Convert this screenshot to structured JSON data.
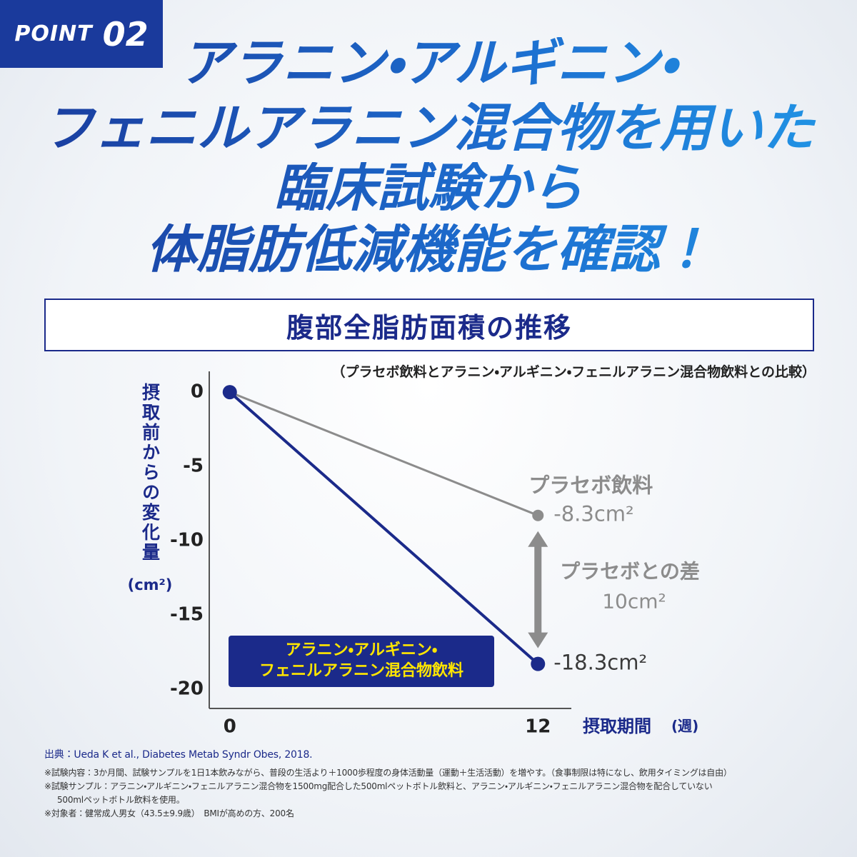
{
  "badge": {
    "word": "POINT",
    "number": "02"
  },
  "headline": [
    "アラニン・アルギニン・",
    "フェニルアラニン混合物を用いた",
    "臨床試験から",
    "体脂肪低減機能を確認！"
  ],
  "chart_data": {
    "type": "line",
    "title": "腹部全脂肪面積の推移",
    "subtitle": "（プラセボ飲料とアラニン・アルギニン・フェニルアラニン混合物飲料との比較）",
    "y_label": "摂取前からの変化量",
    "y_unit": "(cm²)",
    "x_label": "摂取期間",
    "x_unit": "(週)",
    "x": [
      0,
      12
    ],
    "xlim": [
      -0.8,
      13.3
    ],
    "xticks": [
      0,
      12
    ],
    "ylim": [
      -21.3,
      1.4
    ],
    "yticks": [
      0,
      -5,
      -10,
      -15,
      -20
    ],
    "series": [
      {
        "name": "プラセボ飲料",
        "color": "#8c8c8c",
        "values": [
          0,
          -8.3
        ],
        "value_labels": [
          null,
          "-8.3cm²"
        ]
      },
      {
        "name": "アラニン・アルギニン・\nフェニルアラニン混合物飲料",
        "color": "#1b2a8a",
        "values": [
          0,
          -18.3
        ],
        "value_labels": [
          null,
          "-18.3cm²"
        ]
      }
    ],
    "legend_text_color": "#ffe600",
    "annotation": {
      "text": "プラセボとの差",
      "value": 10,
      "label": "10cm²"
    }
  },
  "source": {
    "prefix": "出典：",
    "text": "Ueda K et al., Diabetes Metab Syndr Obes, 2018."
  },
  "notes": [
    "※試験内容：3か月間、試験サンプルを1日1本飲みながら、普段の生活より＋1000歩程度の身体活動量（運動＋生活活動）を増やす。（食事制限は特になし、飲用タイミングは自由）",
    "※試験サンプル：アラニン・アルギニン・フェニルアラニン混合物を1500mg配合した500mlペットボトル飲料と、アラニン・アルギニン・フェニルアラニン混合物を配合していない",
    "500mlペットボトル飲料を使用。",
    "※対象者：健常成人男女（43.5±9.9歳）　BMIが高めの方、200名"
  ]
}
